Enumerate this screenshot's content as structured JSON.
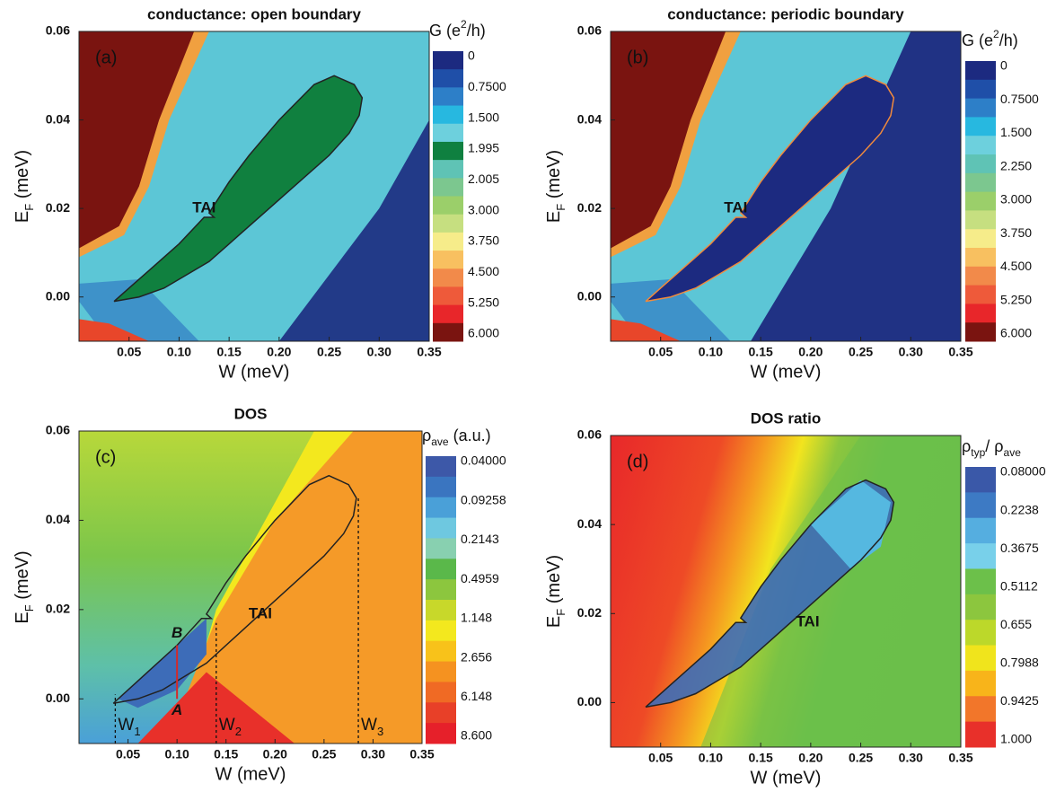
{
  "chart_data": [
    {
      "type": "heatmap",
      "title": "conductance: open boundary",
      "panel_label": "(a)",
      "annotation": "TAI",
      "xlabel": "W (meV)",
      "ylabel": {
        "parts": [
          "E",
          "F",
          " (meV)"
        ],
        "script": "sub"
      },
      "xlim": [
        0,
        0.35
      ],
      "ylim": [
        -0.01,
        0.06
      ],
      "xticks": [
        {
          "value": 0.05,
          "label": "0.05"
        },
        {
          "value": 0.1,
          "label": "0.10"
        },
        {
          "value": 0.15,
          "label": "0.15"
        },
        {
          "value": 0.2,
          "label": "0.20"
        },
        {
          "value": 0.25,
          "label": "0.25"
        },
        {
          "value": 0.3,
          "label": "0.30"
        },
        {
          "value": 0.35,
          "label": "0.35"
        }
      ],
      "yticks": [
        {
          "value": 0,
          "label": "0.00"
        },
        {
          "value": 0.02,
          "label": "0.02"
        },
        {
          "value": 0.04,
          "label": "0.04"
        },
        {
          "value": 0.06,
          "label": "0.06"
        }
      ],
      "colorbar_label": {
        "parts": [
          "G (e",
          "2",
          "/h)"
        ],
        "script": "super"
      },
      "colorbar_ticks": [
        0,
        {
          "value": 0.75,
          "label": "0.7500"
        },
        {
          "value": 1.5,
          "label": "1.500"
        },
        1.995,
        2.005,
        {
          "value": 3,
          "label": "3.000"
        },
        {
          "value": 3.75,
          "label": "3.750"
        },
        {
          "value": 4.5,
          "label": "4.500"
        },
        {
          "value": 5.25,
          "label": "5.250"
        },
        {
          "value": 6,
          "label": "6.000"
        }
      ],
      "colorbar_colors": [
        "#1c2a80",
        "#1f4fa8",
        "#2d7fc8",
        "#27b8e0",
        "#6dd0dd",
        "#0f8040",
        "#5fc3b5",
        "#7cc78f",
        "#9bcf6a",
        "#c6df80",
        "#f6ec8a",
        "#f8c060",
        "#f28a4a",
        "#ee5a3a",
        "#e8262a",
        "#7a1410"
      ],
      "contour": {
        "color": "#222222",
        "x": [
          0.035,
          0.06,
          0.085,
          0.1,
          0.13,
          0.16,
          0.19,
          0.22,
          0.25,
          0.27,
          0.28,
          0.283,
          0.275,
          0.255,
          0.235,
          0.2,
          0.17,
          0.15,
          0.13,
          0.135,
          0.125,
          0.1,
          0.07,
          0.05,
          0.035
        ],
        "y": [
          -0.001,
          0,
          0.002,
          0.004,
          0.008,
          0.014,
          0.02,
          0.026,
          0.032,
          0.037,
          0.041,
          0.045,
          0.048,
          0.05,
          0.048,
          0.04,
          0.032,
          0.026,
          0.019,
          0.018,
          0.018,
          0.012,
          0.006,
          0.002,
          -0.001
        ]
      }
    },
    {
      "type": "heatmap",
      "title": "conductance: periodic boundary",
      "panel_label": "(b)",
      "annotation": "TAI",
      "xlabel": "W (meV)",
      "ylabel": {
        "parts": [
          "E",
          "F",
          " (meV)"
        ],
        "script": "sub"
      },
      "xlim": [
        0,
        0.35
      ],
      "ylim": [
        -0.01,
        0.06
      ],
      "xticks": [
        {
          "value": 0.05,
          "label": "0.05"
        },
        {
          "value": 0.1,
          "label": "0.10"
        },
        {
          "value": 0.15,
          "label": "0.15"
        },
        {
          "value": 0.2,
          "label": "0.20"
        },
        {
          "value": 0.25,
          "label": "0.25"
        },
        {
          "value": 0.3,
          "label": "0.30"
        },
        {
          "value": 0.35,
          "label": "0.35"
        }
      ],
      "yticks": [
        {
          "value": 0,
          "label": "0.00"
        },
        {
          "value": 0.02,
          "label": "0.02"
        },
        {
          "value": 0.04,
          "label": "0.04"
        },
        {
          "value": 0.06,
          "label": "0.06"
        }
      ],
      "colorbar_label": {
        "parts": [
          "G (e",
          "2",
          "/h)"
        ],
        "script": "super"
      },
      "colorbar_ticks": [
        0,
        {
          "value": 0.75,
          "label": "0.7500"
        },
        {
          "value": 1.5,
          "label": "1.500"
        },
        {
          "value": 2.25,
          "label": "2.250"
        },
        {
          "value": 3,
          "label": "3.000"
        },
        {
          "value": 3.75,
          "label": "3.750"
        },
        {
          "value": 4.5,
          "label": "4.500"
        },
        {
          "value": 5.25,
          "label": "5.250"
        },
        {
          "value": 6,
          "label": "6.000"
        }
      ],
      "colorbar_colors": [
        "#1c2a80",
        "#1f4fa8",
        "#2d7fc8",
        "#27b8e0",
        "#6dd0dd",
        "#5fc3b5",
        "#7cc78f",
        "#9bcf6a",
        "#c6df80",
        "#f6ec8a",
        "#f8c060",
        "#f28a4a",
        "#ee5a3a",
        "#e8262a",
        "#7a1410"
      ],
      "contour": {
        "color": "#f08a3c",
        "x": [
          0.035,
          0.06,
          0.085,
          0.1,
          0.13,
          0.16,
          0.19,
          0.22,
          0.25,
          0.27,
          0.28,
          0.283,
          0.275,
          0.255,
          0.235,
          0.2,
          0.17,
          0.15,
          0.13,
          0.135,
          0.125,
          0.1,
          0.07,
          0.05,
          0.035
        ],
        "y": [
          -0.001,
          0,
          0.002,
          0.004,
          0.008,
          0.014,
          0.02,
          0.026,
          0.032,
          0.037,
          0.041,
          0.045,
          0.048,
          0.05,
          0.048,
          0.04,
          0.032,
          0.026,
          0.019,
          0.018,
          0.018,
          0.012,
          0.006,
          0.002,
          -0.001
        ]
      }
    },
    {
      "type": "heatmap",
      "title": "DOS",
      "panel_label": "(c)",
      "annotation": "TAI",
      "xlabel": "W (meV)",
      "ylabel": {
        "parts": [
          "E",
          "F",
          " (meV)"
        ],
        "script": "sub"
      },
      "xlim": [
        0,
        0.35
      ],
      "ylim": [
        -0.01,
        0.06
      ],
      "xticks": [
        {
          "value": 0.05,
          "label": "0.05"
        },
        {
          "value": 0.1,
          "label": "0.10"
        },
        {
          "value": 0.15,
          "label": "0.15"
        },
        {
          "value": 0.2,
          "label": "0.20"
        },
        {
          "value": 0.25,
          "label": "0.25"
        },
        {
          "value": 0.3,
          "label": "0.30"
        },
        {
          "value": 0.35,
          "label": "0.35"
        }
      ],
      "yticks": [
        {
          "value": 0,
          "label": "0.00"
        },
        {
          "value": 0.02,
          "label": "0.02"
        },
        {
          "value": 0.04,
          "label": "0.04"
        },
        {
          "value": 0.06,
          "label": "0.06"
        }
      ],
      "colorbar_label": {
        "parts": [
          "ρ",
          "ave",
          "  (a.u.)"
        ],
        "script": "sub"
      },
      "colorbar_ticks": [
        {
          "value": 0.04,
          "label": "0.04000"
        },
        0.09258,
        0.2143,
        0.4959,
        1.148,
        2.656,
        6.148,
        {
          "value": 8.6,
          "label": "8.600"
        }
      ],
      "colorbar_colors": [
        "#3d58a8",
        "#3a75c0",
        "#4aa0d8",
        "#6ec8e0",
        "#88d0b0",
        "#5ab84a",
        "#8cc63e",
        "#c8d82a",
        "#f3e81e",
        "#f8c21a",
        "#f59220",
        "#f06a24",
        "#e84028",
        "#e6202a"
      ],
      "markers": [
        {
          "label": [
            "W",
            "1"
          ],
          "x": 0.037,
          "ytop": 0.001
        },
        {
          "label": [
            "W",
            "2"
          ],
          "x": 0.14,
          "ytop": 0.017
        },
        {
          "label": [
            "W",
            "3"
          ],
          "x": 0.285,
          "ytop": 0.045
        }
      ],
      "segment": {
        "x": 0.1,
        "y": [
          0,
          0.012
        ],
        "labels": [
          "A",
          "B"
        ]
      },
      "contour": {
        "color": "#222222",
        "x": [
          0.035,
          0.06,
          0.085,
          0.1,
          0.13,
          0.16,
          0.19,
          0.22,
          0.25,
          0.27,
          0.28,
          0.283,
          0.275,
          0.255,
          0.235,
          0.2,
          0.17,
          0.15,
          0.13,
          0.135,
          0.125,
          0.1,
          0.07,
          0.05,
          0.035
        ],
        "y": [
          -0.001,
          0,
          0.002,
          0.004,
          0.008,
          0.014,
          0.02,
          0.026,
          0.032,
          0.037,
          0.041,
          0.045,
          0.048,
          0.05,
          0.048,
          0.04,
          0.032,
          0.026,
          0.019,
          0.018,
          0.018,
          0.012,
          0.006,
          0.002,
          -0.001
        ]
      }
    },
    {
      "type": "heatmap",
      "title": "DOS ratio",
      "panel_label": "(d)",
      "annotation": "TAI",
      "xlabel": "W (meV)",
      "ylabel": {
        "parts": [
          "E",
          "F",
          " (meV)"
        ],
        "script": "sub"
      },
      "xlim": [
        0,
        0.35
      ],
      "ylim": [
        -0.01,
        0.06
      ],
      "xticks": [
        {
          "value": 0.05,
          "label": "0.05"
        },
        {
          "value": 0.1,
          "label": "0.10"
        },
        {
          "value": 0.15,
          "label": "0.15"
        },
        {
          "value": 0.2,
          "label": "0.20"
        },
        {
          "value": 0.25,
          "label": "0.25"
        },
        {
          "value": 0.3,
          "label": "0.30"
        },
        {
          "value": 0.35,
          "label": "0.35"
        }
      ],
      "yticks": [
        {
          "value": 0,
          "label": "0.00"
        },
        {
          "value": 0.02,
          "label": "0.02"
        },
        {
          "value": 0.04,
          "label": "0.04"
        },
        {
          "value": 0.06,
          "label": "0.06"
        }
      ],
      "colorbar_label": {
        "parts": [
          "ρ",
          "typ",
          "/ ρ",
          "ave"
        ],
        "script": "sub"
      },
      "colorbar_ticks": [
        {
          "value": 0.08,
          "label": "0.08000"
        },
        0.2238,
        0.3675,
        0.5112,
        0.655,
        {
          "value": 0.7988,
          "label": "0.7988"
        },
        0.9425,
        {
          "value": 1,
          "label": "1.000"
        }
      ],
      "colorbar_colors": [
        "#3a58a8",
        "#3d7ac4",
        "#55aee0",
        "#78d0ea",
        "#6cc04a",
        "#8cc63e",
        "#bcd82a",
        "#f0e41c",
        "#f8b41a",
        "#f2762a",
        "#e8302a"
      ],
      "contour": {
        "color": "#222222",
        "x": [
          0.035,
          0.06,
          0.085,
          0.1,
          0.13,
          0.16,
          0.19,
          0.22,
          0.25,
          0.27,
          0.28,
          0.283,
          0.275,
          0.255,
          0.235,
          0.2,
          0.17,
          0.15,
          0.13,
          0.135,
          0.125,
          0.1,
          0.07,
          0.05,
          0.035
        ],
        "y": [
          -0.001,
          0,
          0.002,
          0.004,
          0.008,
          0.014,
          0.02,
          0.026,
          0.032,
          0.037,
          0.041,
          0.045,
          0.048,
          0.05,
          0.048,
          0.04,
          0.032,
          0.026,
          0.019,
          0.018,
          0.018,
          0.012,
          0.006,
          0.002,
          -0.001
        ]
      }
    }
  ]
}
